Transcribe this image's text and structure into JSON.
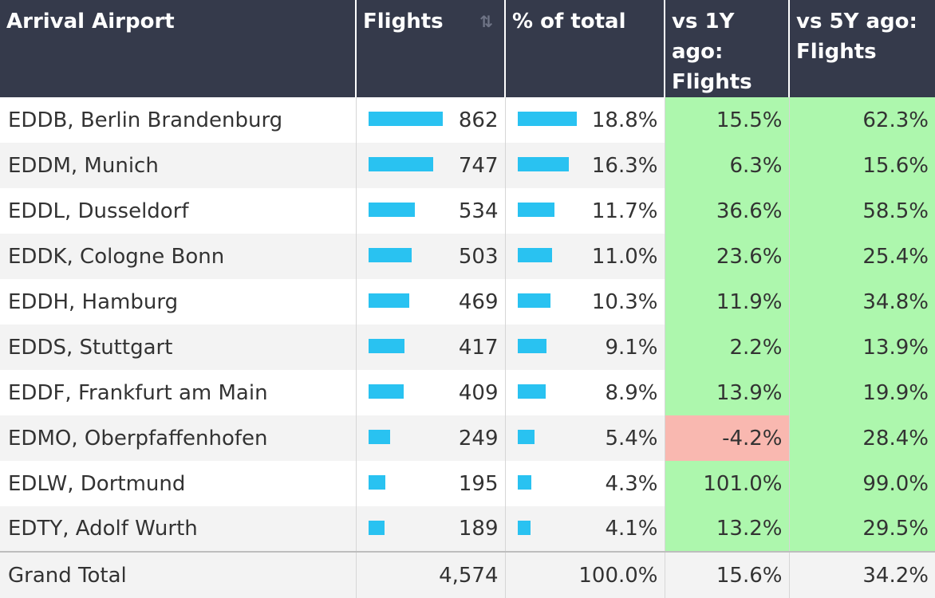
{
  "header": {
    "airport": "Arrival Airport",
    "flights": "Flights",
    "pct": "% of total",
    "vs1y": [
      "vs 1Y ago:",
      "Flights"
    ],
    "vs5y": [
      "vs 5Y ago:",
      "Flights"
    ]
  },
  "colors": {
    "bar": "#29c2f1",
    "positive": "#adf7ad",
    "negative": "#f9b8b0",
    "header": "#353a4b"
  },
  "icons": {
    "sort": "sort-icon"
  },
  "rows": [
    {
      "airport": "EDDB, Berlin Brandenburg",
      "flights": "862",
      "flights_value": 862,
      "pct": "18.8%",
      "pct_value": 18.8,
      "vs1y": "15.5%",
      "vs1y_value": 15.5,
      "vs5y": "62.3%",
      "vs5y_value": 62.3
    },
    {
      "airport": "EDDM, Munich",
      "flights": "747",
      "flights_value": 747,
      "pct": "16.3%",
      "pct_value": 16.3,
      "vs1y": "6.3%",
      "vs1y_value": 6.3,
      "vs5y": "15.6%",
      "vs5y_value": 15.6
    },
    {
      "airport": "EDDL, Dusseldorf",
      "flights": "534",
      "flights_value": 534,
      "pct": "11.7%",
      "pct_value": 11.7,
      "vs1y": "36.6%",
      "vs1y_value": 36.6,
      "vs5y": "58.5%",
      "vs5y_value": 58.5
    },
    {
      "airport": "EDDK, Cologne Bonn",
      "flights": "503",
      "flights_value": 503,
      "pct": "11.0%",
      "pct_value": 11.0,
      "vs1y": "23.6%",
      "vs1y_value": 23.6,
      "vs5y": "25.4%",
      "vs5y_value": 25.4
    },
    {
      "airport": "EDDH, Hamburg",
      "flights": "469",
      "flights_value": 469,
      "pct": "10.3%",
      "pct_value": 10.3,
      "vs1y": "11.9%",
      "vs1y_value": 11.9,
      "vs5y": "34.8%",
      "vs5y_value": 34.8
    },
    {
      "airport": "EDDS, Stuttgart",
      "flights": "417",
      "flights_value": 417,
      "pct": "9.1%",
      "pct_value": 9.1,
      "vs1y": "2.2%",
      "vs1y_value": 2.2,
      "vs5y": "13.9%",
      "vs5y_value": 13.9
    },
    {
      "airport": "EDDF, Frankfurt am Main",
      "flights": "409",
      "flights_value": 409,
      "pct": "8.9%",
      "pct_value": 8.9,
      "vs1y": "13.9%",
      "vs1y_value": 13.9,
      "vs5y": "19.9%",
      "vs5y_value": 19.9
    },
    {
      "airport": "EDMO, Oberpfaffenhofen",
      "flights": "249",
      "flights_value": 249,
      "pct": "5.4%",
      "pct_value": 5.4,
      "vs1y": "-4.2%",
      "vs1y_value": -4.2,
      "vs5y": "28.4%",
      "vs5y_value": 28.4
    },
    {
      "airport": "EDLW, Dortmund",
      "flights": "195",
      "flights_value": 195,
      "pct": "4.3%",
      "pct_value": 4.3,
      "vs1y": "101.0%",
      "vs1y_value": 101.0,
      "vs5y": "99.0%",
      "vs5y_value": 99.0
    },
    {
      "airport": "EDTY, Adolf Wurth",
      "flights": "189",
      "flights_value": 189,
      "pct": "4.1%",
      "pct_value": 4.1,
      "vs1y": "13.2%",
      "vs1y_value": 13.2,
      "vs5y": "29.5%",
      "vs5y_value": 29.5
    }
  ],
  "total": {
    "label": "Grand Total",
    "flights": "4,574",
    "pct": "100.0%",
    "vs1y": "15.6%",
    "vs5y": "34.2%"
  }
}
